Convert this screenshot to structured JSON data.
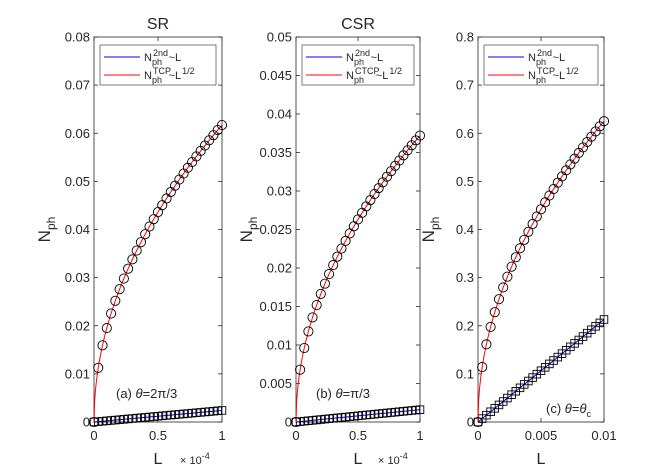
{
  "chart_data": [
    {
      "type": "scatter",
      "title": "SR",
      "xlabel": "L",
      "ylabel": "N_ph",
      "xlim": [
        0,
        1
      ],
      "ylim": [
        0,
        0.08
      ],
      "x_exponent_label": "× 10^-4",
      "x_ticks": [
        0,
        0.5,
        1
      ],
      "x_tick_labels": [
        "0",
        "0.5",
        "1"
      ],
      "y_ticks": [
        0,
        0.01,
        0.02,
        0.03,
        0.04,
        0.05,
        0.06,
        0.07,
        0.08
      ],
      "y_tick_labels": [
        "0",
        "0.01",
        "0.02",
        "0.03",
        "0.04",
        "0.05",
        "0.06",
        "0.07",
        "0.08"
      ],
      "annotation": "(a) θ=2π/3",
      "legend_position": "top",
      "series": [
        {
          "name": "N_ph^2nd ~ L",
          "style": "line",
          "color": "#0000ff",
          "marker": "square",
          "model": "linear",
          "coef": 0.0024,
          "x_end": 1
        },
        {
          "name": "N_ph^TCP ~ L^1/2",
          "style": "line",
          "color": "#ff0000",
          "marker": "circle",
          "model": "sqrt",
          "coef": 0.0617,
          "x_end": 1
        }
      ],
      "legend_labels": [
        {
          "base": "N",
          "sub": "ph",
          "sup": "2nd",
          "tail": "~L",
          "tail_sup": ""
        },
        {
          "base": "N",
          "sub": "ph",
          "sup": "TCP",
          "tail": "~L",
          "tail_sup": "1/2"
        }
      ]
    },
    {
      "type": "scatter",
      "title": "CSR",
      "xlabel": "L",
      "ylabel": "N_ph",
      "xlim": [
        0,
        1
      ],
      "ylim": [
        0,
        0.05
      ],
      "x_exponent_label": "× 10^-4",
      "x_ticks": [
        0,
        0.5,
        1
      ],
      "x_tick_labels": [
        "0",
        "0.5",
        "1"
      ],
      "y_ticks": [
        0,
        0.005,
        0.01,
        0.015,
        0.02,
        0.025,
        0.03,
        0.035,
        0.04,
        0.045,
        0.05
      ],
      "y_tick_labels": [
        "0",
        "0.005",
        "0.01",
        "0.015",
        "0.02",
        "0.025",
        "0.03",
        "0.035",
        "0.04",
        "0.045",
        "0.05"
      ],
      "annotation": "(b) θ=π/3",
      "legend_position": "top",
      "series": [
        {
          "name": "N_ph^2nd ~ L",
          "style": "line",
          "color": "#0000ff",
          "marker": "square",
          "model": "linear",
          "coef": 0.0016,
          "x_end": 1
        },
        {
          "name": "N_ph^CTCP ~ L^1/2",
          "style": "line",
          "color": "#ff0000",
          "marker": "circle",
          "model": "sqrt",
          "coef": 0.0372,
          "x_end": 1
        }
      ],
      "legend_labels": [
        {
          "base": "N",
          "sub": "ph",
          "sup": "2nd",
          "tail": "~L",
          "tail_sup": ""
        },
        {
          "base": "N",
          "sub": "ph",
          "sup": "CTCP",
          "tail": "~L",
          "tail_sup": "1/2"
        }
      ]
    },
    {
      "type": "scatter",
      "title": "",
      "xlabel": "L",
      "ylabel": "N_ph",
      "xlim": [
        0,
        0.01
      ],
      "ylim": [
        0,
        0.8
      ],
      "x_exponent_label": "",
      "x_ticks": [
        0,
        0.005,
        0.01
      ],
      "x_tick_labels": [
        "0",
        "0.005",
        "0.01"
      ],
      "y_ticks": [
        0,
        0.1,
        0.2,
        0.3,
        0.4,
        0.5,
        0.6,
        0.7,
        0.8
      ],
      "y_tick_labels": [
        "0",
        "0.1",
        "0.2",
        "0.3",
        "0.4",
        "0.5",
        "0.6",
        "0.7",
        "0.8"
      ],
      "annotation": "(c) θ=θ_c",
      "legend_position": "top",
      "series": [
        {
          "name": "N_ph^2nd ~ L",
          "style": "line",
          "color": "#0000ff",
          "marker": "square",
          "model": "linear",
          "coef": 0.213,
          "x_end": 0.01
        },
        {
          "name": "N_ph^TCP ~ L^1/2",
          "style": "line",
          "color": "#ff0000",
          "marker": "circle",
          "model": "sqrt",
          "coef": 0.625,
          "x_end": 0.01
        }
      ],
      "legend_labels": [
        {
          "base": "N",
          "sub": "ph",
          "sup": "2nd",
          "tail": "~L",
          "tail_sup": ""
        },
        {
          "base": "N",
          "sub": "ph",
          "sup": "TCP",
          "tail": "~L",
          "tail_sup": "1/2"
        }
      ]
    }
  ],
  "markers_per_series": 31
}
